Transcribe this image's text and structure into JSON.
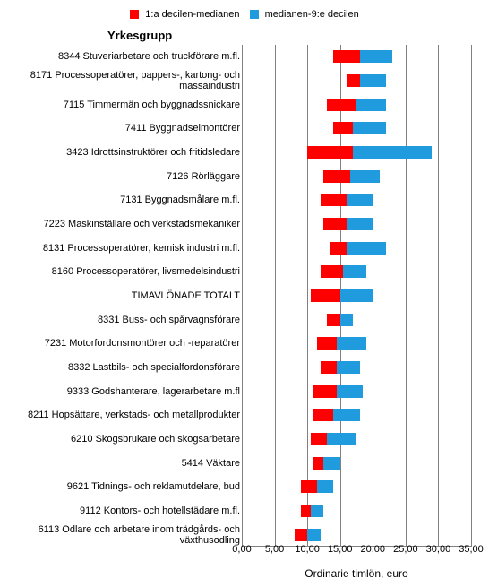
{
  "chart": {
    "type": "stacked-range-bar",
    "legend": {
      "items": [
        {
          "label": "1:a decilen-medianen",
          "color": "#ff0000"
        },
        {
          "label": "medianen-9:e decilen",
          "color": "#1f9bde"
        }
      ]
    },
    "group_title": "Yrkesgrupp",
    "xaxis": {
      "min": 0,
      "max": 35,
      "ticks": [
        0,
        5,
        10,
        15,
        20,
        25,
        30,
        35
      ],
      "tick_labels": [
        "0,00",
        "5,00",
        "10,00",
        "15,00",
        "20,00",
        "25,00",
        "30,00",
        "35,00"
      ],
      "label": "Ordinarie timlön, euro"
    },
    "colors": {
      "red": "#ff0000",
      "blue": "#1f9bde",
      "grid": "#808080",
      "background": "#ffffff",
      "text": "#000000"
    },
    "fontsize": {
      "axis": 11,
      "label": 12,
      "title": 13
    },
    "rows": [
      {
        "code": "8344",
        "label": "Stuveriarbetare och truckförare m.fl.",
        "d1": 14.0,
        "median": 18.0,
        "d9": 23.0
      },
      {
        "code": "8171",
        "label": "Processoperatörer, pappers-, kartong- och massaindustri",
        "d1": 16.0,
        "median": 18.0,
        "d9": 22.0
      },
      {
        "code": "7115",
        "label": "Timmermän och byggnadssnickare",
        "d1": 13.0,
        "median": 17.5,
        "d9": 22.0
      },
      {
        "code": "7411",
        "label": "Byggnadselmontörer",
        "d1": 14.0,
        "median": 17.0,
        "d9": 22.0
      },
      {
        "code": "3423",
        "label": "Idrottsinstruktörer och fritidsledare",
        "d1": 10.0,
        "median": 17.0,
        "d9": 29.0
      },
      {
        "code": "7126",
        "label": "Rörläggare",
        "d1": 12.5,
        "median": 16.5,
        "d9": 21.0
      },
      {
        "code": "7131",
        "label": "Byggnadsmålare m.fl.",
        "d1": 12.0,
        "median": 16.0,
        "d9": 20.0
      },
      {
        "code": "7223",
        "label": "Maskinställare och verkstadsmekaniker",
        "d1": 12.5,
        "median": 16.0,
        "d9": 20.0
      },
      {
        "code": "8131",
        "label": "Processoperatörer, kemisk industri m.fl.",
        "d1": 13.5,
        "median": 16.0,
        "d9": 22.0
      },
      {
        "code": "8160",
        "label": "Processoperatörer, livsmedelsindustri",
        "d1": 12.0,
        "median": 15.5,
        "d9": 19.0
      },
      {
        "code": "",
        "label": "TIMAVLÖNADE TOTALT",
        "d1": 10.5,
        "median": 15.0,
        "d9": 20.0
      },
      {
        "code": "8331",
        "label": "Buss- och spårvagnsförare",
        "d1": 13.0,
        "median": 15.0,
        "d9": 17.0
      },
      {
        "code": "7231",
        "label": "Motorfordonsmontörer och -reparatörer",
        "d1": 11.5,
        "median": 14.5,
        "d9": 19.0
      },
      {
        "code": "8332",
        "label": "Lastbils- och specialfordonsförare",
        "d1": 12.0,
        "median": 14.5,
        "d9": 18.0
      },
      {
        "code": "9333",
        "label": "Godshanterare, lagerarbetare m.fl",
        "d1": 11.0,
        "median": 14.5,
        "d9": 18.5
      },
      {
        "code": "8211",
        "label": "Hopsättare, verkstads- och metallprodukter",
        "d1": 11.0,
        "median": 14.0,
        "d9": 18.0
      },
      {
        "code": "6210",
        "label": "Skogsbrukare och skogsarbetare",
        "d1": 10.5,
        "median": 13.0,
        "d9": 17.5
      },
      {
        "code": "5414",
        "label": "Väktare",
        "d1": 11.0,
        "median": 12.5,
        "d9": 15.0
      },
      {
        "code": "9621",
        "label": "Tidnings- och reklamutdelare, bud",
        "d1": 9.0,
        "median": 11.5,
        "d9": 14.0
      },
      {
        "code": "9112",
        "label": "Kontors- och hotellstädare m.fl.",
        "d1": 9.0,
        "median": 10.5,
        "d9": 12.5
      },
      {
        "code": "6113",
        "label": "Odlare och arbetare inom trädgårds- och växthusodling",
        "d1": 8.0,
        "median": 10.0,
        "d9": 12.0
      }
    ]
  }
}
